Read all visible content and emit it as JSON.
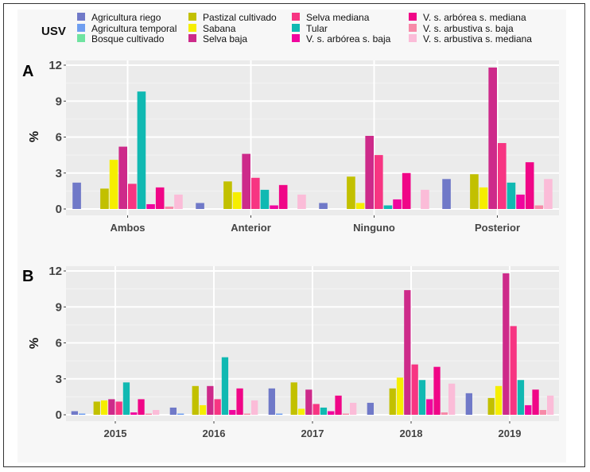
{
  "legend": {
    "title": "USV",
    "items": [
      {
        "label": "Agricultura riego",
        "color": "#7079c8"
      },
      {
        "label": "Agricultura temporal",
        "color": "#6f9ef0"
      },
      {
        "label": "Bosque cultivado",
        "color": "#6fe3a0"
      },
      {
        "label": "Pastizal cultivado",
        "color": "#c2c000"
      },
      {
        "label": "Sabana",
        "color": "#f6ee00"
      },
      {
        "label": "Selva baja",
        "color": "#cd2a8a"
      },
      {
        "label": "Selva mediana",
        "color": "#f73582"
      },
      {
        "label": "Tular",
        "color": "#10b9b2"
      },
      {
        "label": "V. s. arbórea s. baja",
        "color": "#f0069e"
      },
      {
        "label": "V. s. arbórea s. mediana",
        "color": "#f00687"
      },
      {
        "label": "V. s. arbustiva s. baja",
        "color": "#f78aa8"
      },
      {
        "label": "V. s. arbustiva s. mediana",
        "color": "#fbbcd8"
      }
    ]
  },
  "chart_data": [
    {
      "type": "bar",
      "panel": "A",
      "title": "",
      "xlabel": "",
      "ylabel": "%",
      "ylim": [
        0,
        12
      ],
      "yticks": [
        0,
        3,
        6,
        9,
        12
      ],
      "grid": true,
      "legend_position": "top",
      "categories": [
        "Ambos",
        "Anterior",
        "Ninguno",
        "Posterior"
      ],
      "series": [
        {
          "name": "Agricultura riego",
          "values": [
            2.2,
            0.5,
            0.5,
            2.5
          ]
        },
        {
          "name": "Agricultura temporal",
          "values": [
            0,
            0,
            0,
            0
          ]
        },
        {
          "name": "Bosque cultivado",
          "values": [
            0,
            0,
            0,
            0
          ]
        },
        {
          "name": "Pastizal cultivado",
          "values": [
            1.7,
            2.3,
            2.7,
            2.9
          ]
        },
        {
          "name": "Sabana",
          "values": [
            4.1,
            1.4,
            0.5,
            1.8
          ]
        },
        {
          "name": "Selva baja",
          "values": [
            5.2,
            4.6,
            6.1,
            11.8
          ]
        },
        {
          "name": "Selva mediana",
          "values": [
            2.1,
            2.6,
            4.5,
            5.5
          ]
        },
        {
          "name": "Tular",
          "values": [
            9.8,
            1.6,
            0.3,
            2.2
          ]
        },
        {
          "name": "V. s. arbórea s. baja",
          "values": [
            0.4,
            0.3,
            0.8,
            1.2
          ]
        },
        {
          "name": "V. s. arbórea s. mediana",
          "values": [
            1.8,
            2.0,
            3.0,
            3.9
          ]
        },
        {
          "name": "V. s. arbustiva s. baja",
          "values": [
            0.2,
            0,
            0,
            0.3
          ]
        },
        {
          "name": "V. s. arbustiva s. mediana",
          "values": [
            1.2,
            1.2,
            1.6,
            2.5
          ]
        }
      ]
    },
    {
      "type": "bar",
      "panel": "B",
      "title": "",
      "xlabel": "",
      "ylabel": "%",
      "ylim": [
        0,
        12
      ],
      "yticks": [
        0,
        3,
        6,
        9,
        12
      ],
      "grid": true,
      "legend_position": "top",
      "categories": [
        "2015",
        "2016",
        "2017",
        "2018",
        "2019"
      ],
      "series": [
        {
          "name": "Agricultura riego",
          "values": [
            0.3,
            0.6,
            2.2,
            1.0,
            1.8
          ]
        },
        {
          "name": "Agricultura temporal",
          "values": [
            0.1,
            0.1,
            0.1,
            0,
            0
          ]
        },
        {
          "name": "Bosque cultivado",
          "values": [
            0,
            0,
            0,
            0,
            0
          ]
        },
        {
          "name": "Pastizal cultivado",
          "values": [
            1.1,
            2.4,
            2.7,
            2.2,
            1.4
          ]
        },
        {
          "name": "Sabana",
          "values": [
            1.2,
            0.8,
            0.5,
            3.1,
            2.4
          ]
        },
        {
          "name": "Selva baja",
          "values": [
            1.3,
            2.4,
            2.1,
            10.4,
            11.8
          ]
        },
        {
          "name": "Selva mediana",
          "values": [
            1.1,
            1.3,
            0.9,
            4.2,
            7.4
          ]
        },
        {
          "name": "Tular",
          "values": [
            2.7,
            4.8,
            0.6,
            2.9,
            2.9
          ]
        },
        {
          "name": "V. s. arbórea s. baja",
          "values": [
            0.2,
            0.4,
            0.3,
            1.3,
            0.8
          ]
        },
        {
          "name": "V. s. arbórea s. mediana",
          "values": [
            1.3,
            2.2,
            1.6,
            4.0,
            2.1
          ]
        },
        {
          "name": "V. s. arbustiva s. baja",
          "values": [
            0.1,
            0.1,
            0.1,
            0.2,
            0.4
          ]
        },
        {
          "name": "V. s. arbustiva s. mediana",
          "values": [
            0.4,
            1.2,
            1.0,
            2.6,
            1.6
          ]
        }
      ]
    }
  ]
}
